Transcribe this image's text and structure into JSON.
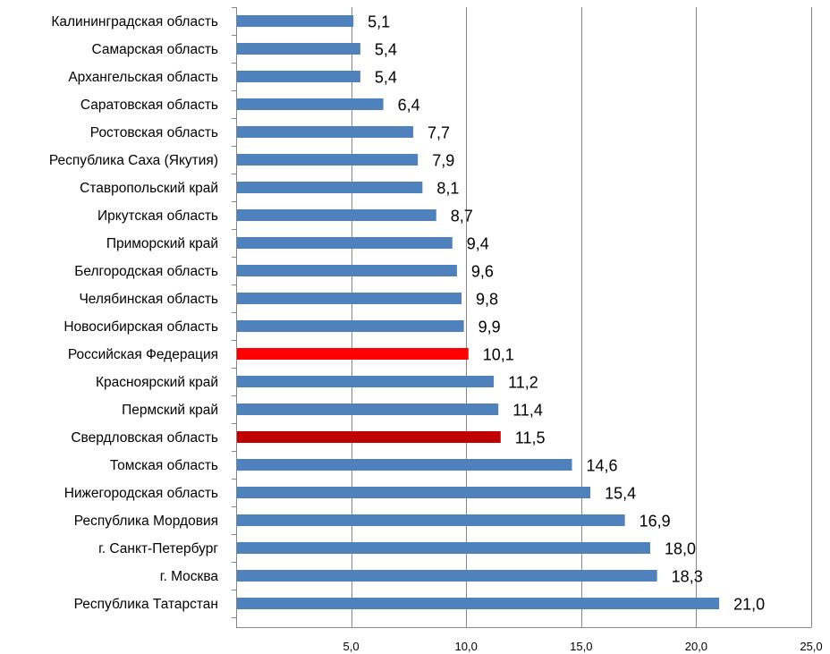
{
  "chart_data": {
    "type": "bar",
    "orientation": "horizontal",
    "title": "",
    "xlabel": "",
    "ylabel": "",
    "categories": [
      "Калининградская область",
      "Самарская область",
      "Архангельская область",
      "Саратовская область",
      "Ростовская область",
      "Республика Саха (Якутия)",
      "Ставропольский край",
      "Иркутская область",
      "Приморский край",
      "Белгородская область",
      "Челябинская область",
      "Новосибирская область",
      "Российская Федерация",
      "Красноярский край",
      "Пермский край",
      "Свердловская область",
      "Томская область",
      "Нижегородская область",
      "Республика Мордовия",
      "г. Санкт-Петербург",
      "г. Москва",
      "Республика Татарстан"
    ],
    "values": [
      5.1,
      5.4,
      5.4,
      6.4,
      7.7,
      7.9,
      8.1,
      8.7,
      9.4,
      9.6,
      9.8,
      9.9,
      10.1,
      11.2,
      11.4,
      11.5,
      14.6,
      15.4,
      16.9,
      18.0,
      18.3,
      21.0
    ],
    "value_labels": [
      "5,1",
      "5,4",
      "5,4",
      "6,4",
      "7,7",
      "7,9",
      "8,1",
      "8,7",
      "9,4",
      "9,6",
      "9,8",
      "9,9",
      "10,1",
      "11,2",
      "11,4",
      "11,5",
      "14,6",
      "15,4",
      "16,9",
      "18,0",
      "18,3",
      "21,0"
    ],
    "xlim": [
      0,
      25
    ],
    "x_ticks": [
      5,
      10,
      15,
      20,
      25
    ],
    "x_tick_labels": [
      "5,0",
      "10,0",
      "15,0",
      "20,0",
      "25,0"
    ],
    "grid": true,
    "legend": "none",
    "colors": {
      "default": "#4F81BD",
      "highlight": {
        "Российская Федерация": "#FF0000",
        "Свердловская область": "#C00000"
      },
      "grid": "#868686"
    }
  }
}
